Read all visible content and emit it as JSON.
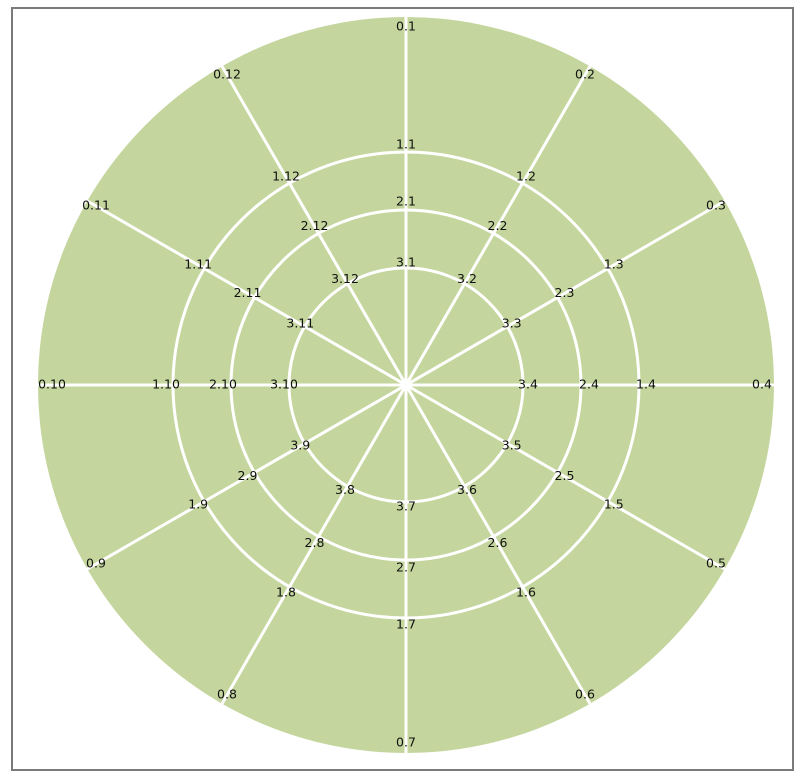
{
  "colors": {
    "background": "#ffffff",
    "border": "#7a7a7a",
    "disc": "#c4d69d",
    "grid": "#ffffff",
    "label": "#111111"
  },
  "rings": [
    {
      "index": 0,
      "labels": [
        "0.1",
        "0.2",
        "0.3",
        "0.4",
        "0.5",
        "0.6",
        "0.7",
        "0.8",
        "0.9",
        "0.10",
        "0.11",
        "0.12"
      ]
    },
    {
      "index": 1,
      "labels": [
        "1.1",
        "1.2",
        "1.3",
        "1.4",
        "1.5",
        "1.6",
        "1.7",
        "1.8",
        "1.9",
        "1.10",
        "1.11",
        "1.12"
      ]
    },
    {
      "index": 2,
      "labels": [
        "2.1",
        "2.2",
        "2.3",
        "2.4",
        "2.5",
        "2.6",
        "2.7",
        "2.8",
        "2.9",
        "2.10",
        "2.11",
        "2.12"
      ]
    },
    {
      "index": 3,
      "labels": [
        "3.1",
        "3.2",
        "3.3",
        "3.4",
        "3.5",
        "3.6",
        "3.7",
        "3.8",
        "3.9",
        "3.10",
        "3.11",
        "3.12"
      ]
    }
  ]
}
